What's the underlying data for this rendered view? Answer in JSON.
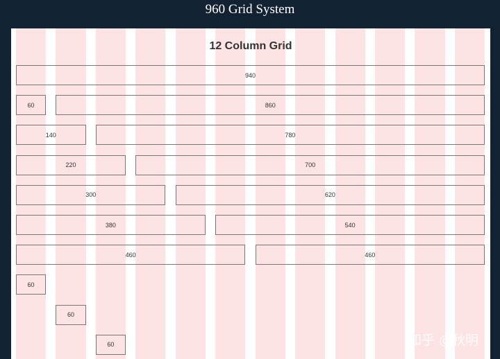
{
  "header": {
    "title": "960 Grid System"
  },
  "panel": {
    "title": "12 Column Grid",
    "rows": [
      [
        940
      ],
      [
        60,
        860
      ],
      [
        140,
        780
      ],
      [
        220,
        700
      ],
      [
        300,
        620
      ],
      [
        380,
        540
      ],
      [
        460,
        460
      ],
      [
        60
      ],
      [
        60
      ],
      [
        60
      ]
    ]
  },
  "watermark": "知乎 @秋明"
}
